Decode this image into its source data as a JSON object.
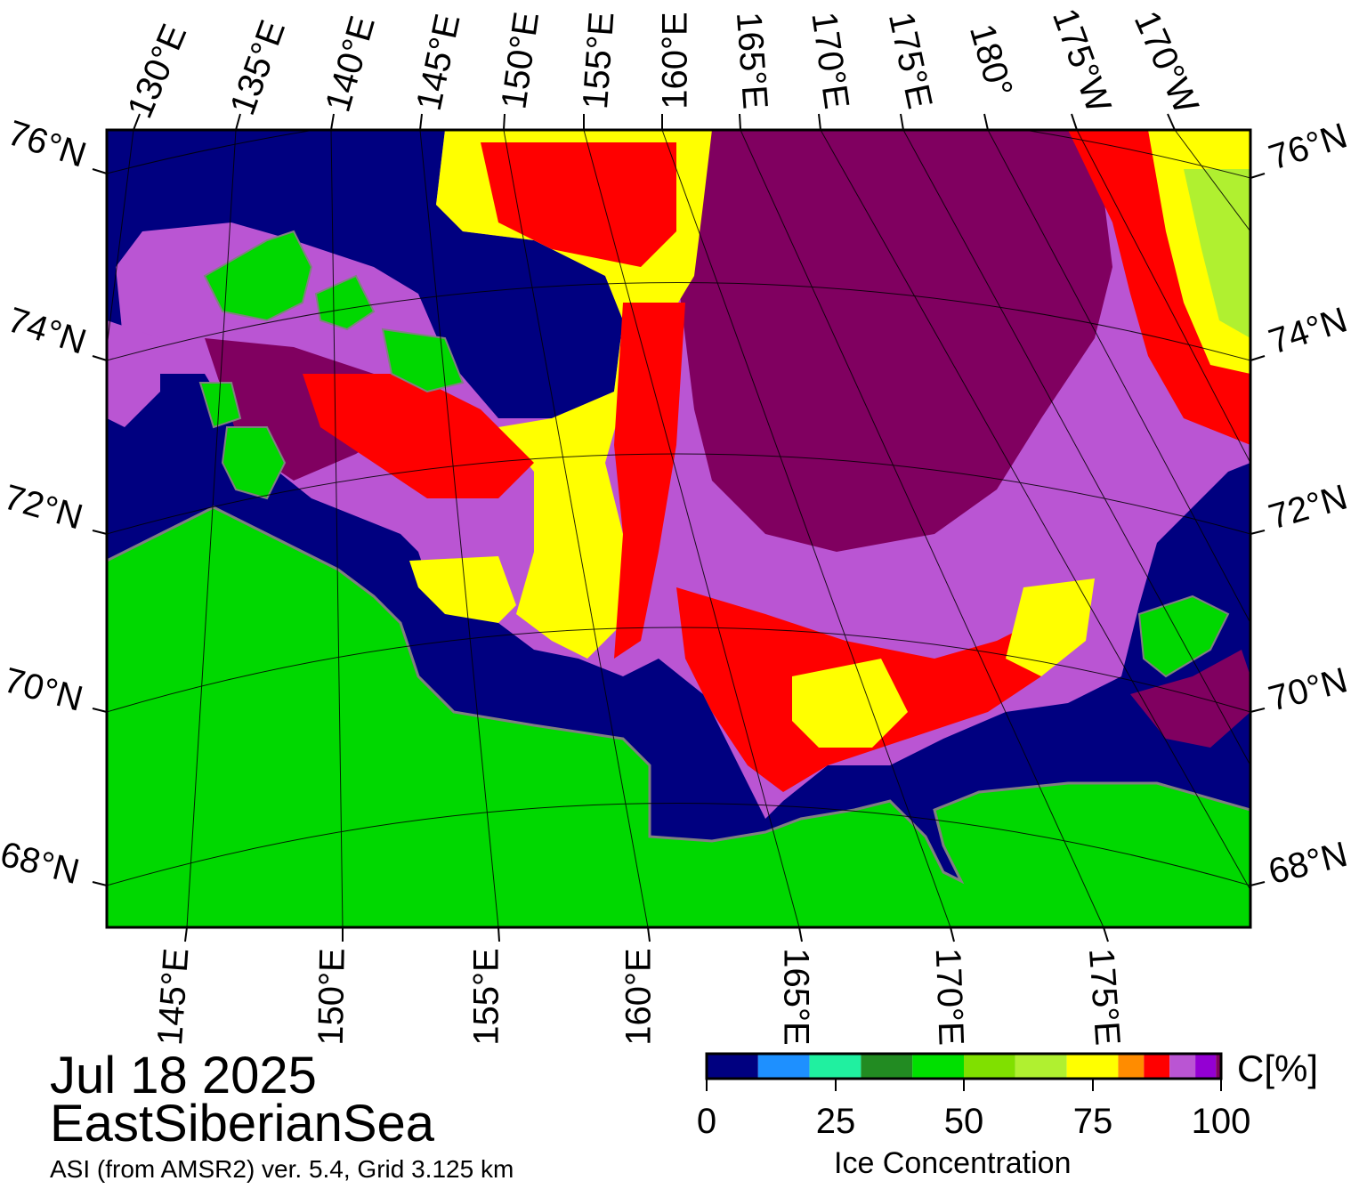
{
  "date": "Jul 18 2025",
  "region": "EastSiberianSea",
  "source": "ASI (from AMSR2) ver. 5.4,  Grid 3.125 km",
  "top_lon_labels": [
    "130°E",
    "135°E",
    "140°E",
    "145°E",
    "150°E",
    "155°E",
    "160°E",
    "165°E",
    "170°E",
    "175°E",
    "180°",
    "175°W",
    "170°W"
  ],
  "bottom_lon_labels": [
    "145°E",
    "150°E",
    "155°E",
    "160°E",
    "165°E",
    "170°E",
    "175°E"
  ],
  "left_lat_labels": [
    "76°N",
    "74°N",
    "72°N",
    "70°N",
    "68°N"
  ],
  "right_lat_labels": [
    "76°N",
    "74°N",
    "72°N",
    "70°N",
    "68°N"
  ],
  "colorbar": {
    "unit": "C[%]",
    "title": "Ice Concentration",
    "ticks": [
      "0",
      "25",
      "50",
      "75",
      "100"
    ],
    "colors": [
      "#000080",
      "#1e90ff",
      "#20f0a0",
      "#228b22",
      "#00e000",
      "#80e000",
      "#b0f030",
      "#ffff00",
      "#ff8c00",
      "#ff0000",
      "#ba55d3",
      "#9400d3",
      "#800060"
    ]
  },
  "colors": {
    "land": "#00d800",
    "open_water": "#000080",
    "coast": "#808080"
  }
}
